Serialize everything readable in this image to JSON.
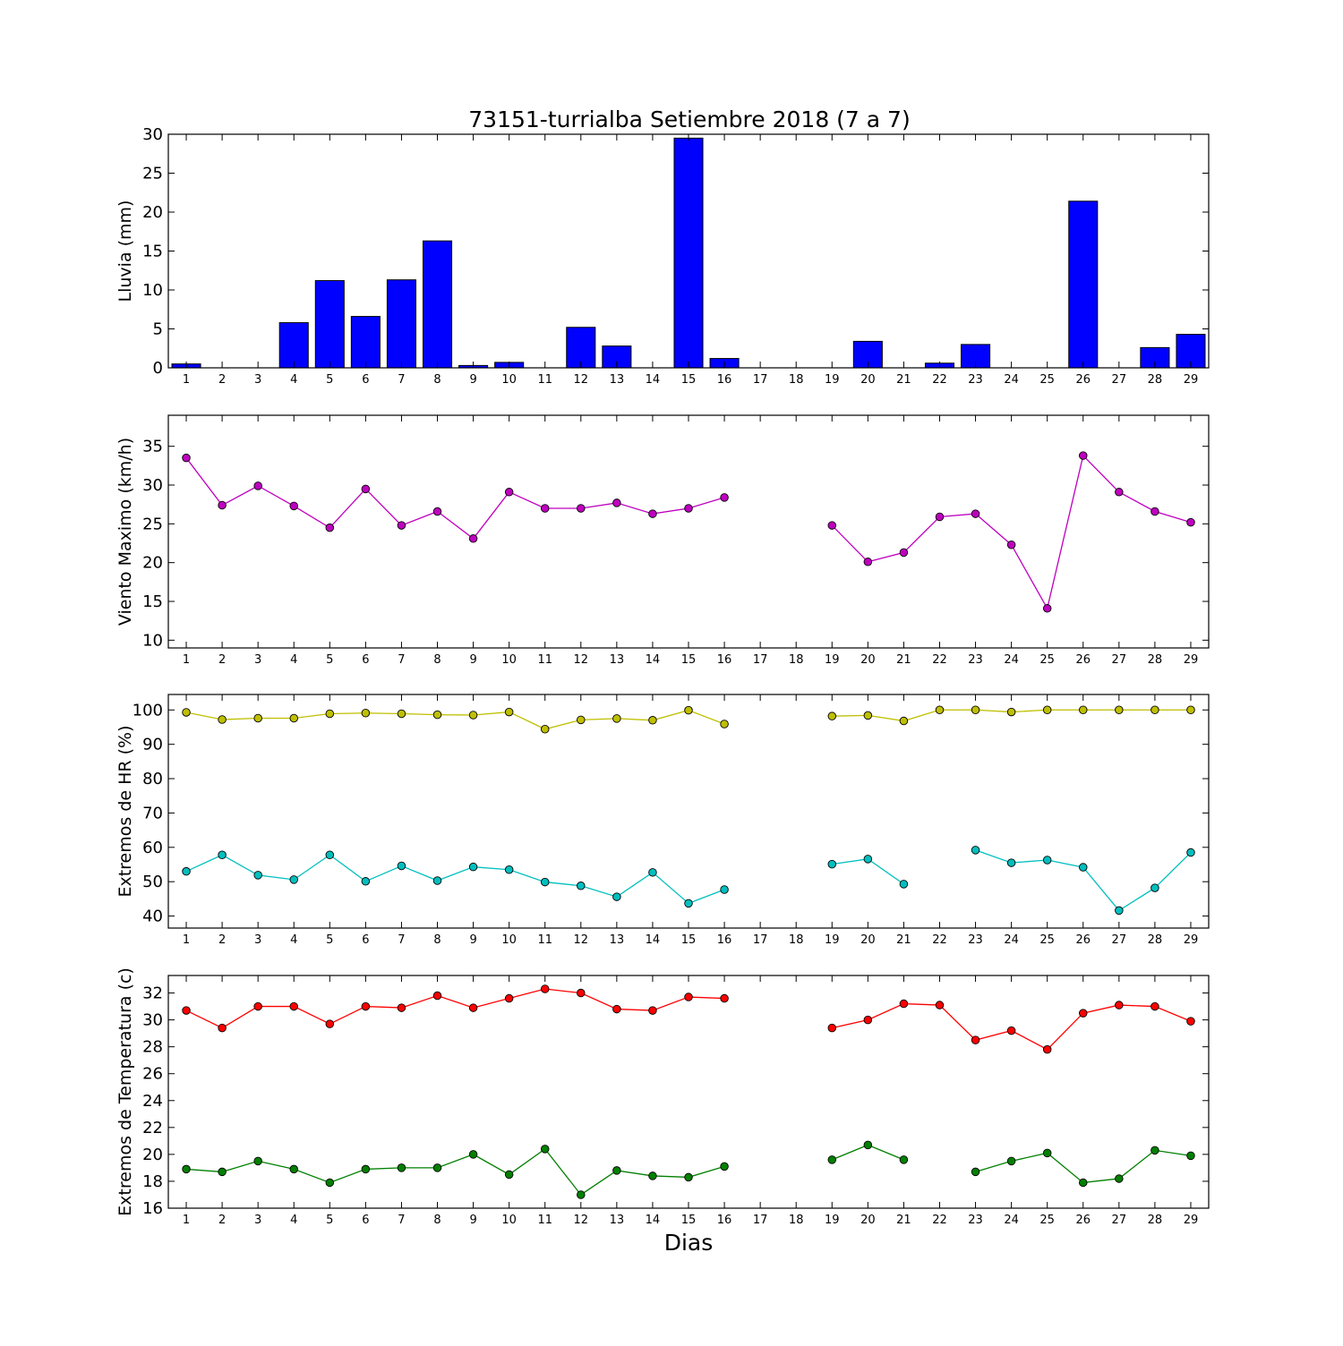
{
  "title": "73151-turrialba Setiembre 2018  (7 a 7)",
  "xlabel": "Dias",
  "chart_data": [
    {
      "type": "bar",
      "ylabel": "Lluvia (mm)",
      "ylim": [
        0,
        30
      ],
      "yticks": [
        0,
        5,
        10,
        15,
        20,
        25,
        30
      ],
      "categories": [
        "1",
        "2",
        "3",
        "4",
        "5",
        "6",
        "7",
        "8",
        "9",
        "10",
        "11",
        "12",
        "13",
        "14",
        "15",
        "16",
        "17",
        "18",
        "19",
        "20",
        "21",
        "22",
        "23",
        "24",
        "25",
        "26",
        "27",
        "28",
        "29"
      ],
      "series": [
        {
          "color": "#0000ff",
          "values": [
            0.5,
            0,
            0,
            5.8,
            11.2,
            6.6,
            11.3,
            16.3,
            0.3,
            0.7,
            0,
            5.2,
            2.8,
            0,
            29.5,
            1.2,
            0,
            0,
            0,
            3.4,
            0,
            0.6,
            3.0,
            0,
            0,
            21.4,
            0,
            2.6,
            4.3
          ]
        }
      ]
    },
    {
      "type": "line",
      "ylabel": "Viento Maximo (km/h)",
      "ylim": [
        9,
        39
      ],
      "yticks": [
        10,
        15,
        20,
        25,
        30,
        35
      ],
      "categories": [
        "1",
        "2",
        "3",
        "4",
        "5",
        "6",
        "7",
        "8",
        "9",
        "10",
        "11",
        "12",
        "13",
        "14",
        "15",
        "16",
        "17",
        "18",
        "19",
        "20",
        "21",
        "22",
        "23",
        "24",
        "25",
        "26",
        "27",
        "28",
        "29"
      ],
      "series": [
        {
          "color": "#bf00bf",
          "values": [
            33.5,
            27.4,
            29.9,
            27.3,
            24.5,
            29.5,
            24.8,
            26.6,
            23.1,
            29.1,
            27.0,
            27.0,
            27.7,
            26.3,
            27.0,
            28.4,
            null,
            null,
            24.8,
            20.1,
            21.3,
            25.9,
            26.3,
            22.3,
            14.1,
            33.8,
            29.1,
            26.6,
            25.2
          ]
        }
      ]
    },
    {
      "type": "line",
      "ylabel": "Extremos de HR (%)",
      "ylim": [
        36.5,
        104.5
      ],
      "yticks": [
        40,
        50,
        60,
        70,
        80,
        90,
        100
      ],
      "categories": [
        "1",
        "2",
        "3",
        "4",
        "5",
        "6",
        "7",
        "8",
        "9",
        "10",
        "11",
        "12",
        "13",
        "14",
        "15",
        "16",
        "17",
        "18",
        "19",
        "20",
        "21",
        "22",
        "23",
        "24",
        "25",
        "26",
        "27",
        "28",
        "29"
      ],
      "series": [
        {
          "color": "#bfbf00",
          "values": [
            99.3,
            97.2,
            97.6,
            97.6,
            98.9,
            99.1,
            98.9,
            98.6,
            98.5,
            99.4,
            94.4,
            97.1,
            97.5,
            97.0,
            99.9,
            95.9,
            null,
            null,
            98.2,
            98.4,
            96.8,
            100.0,
            100.0,
            99.4,
            100.0,
            100.0,
            100.0,
            100.0,
            100.0
          ]
        },
        {
          "color": "#00bfbf",
          "values": [
            53.0,
            57.8,
            51.9,
            50.6,
            57.8,
            50.1,
            54.6,
            50.3,
            54.3,
            53.5,
            49.9,
            48.8,
            45.6,
            52.7,
            43.7,
            47.7,
            null,
            null,
            55.1,
            56.6,
            49.3,
            null,
            59.2,
            55.5,
            56.3,
            54.2,
            41.6,
            48.2,
            58.5
          ]
        }
      ]
    },
    {
      "type": "line",
      "ylabel": "Extremos de Temperatura (c)",
      "ylim": [
        16,
        33.3
      ],
      "yticks": [
        16,
        18,
        20,
        22,
        24,
        26,
        28,
        30,
        32
      ],
      "categories": [
        "1",
        "2",
        "3",
        "4",
        "5",
        "6",
        "7",
        "8",
        "9",
        "10",
        "11",
        "12",
        "13",
        "14",
        "15",
        "16",
        "17",
        "18",
        "19",
        "20",
        "21",
        "22",
        "23",
        "24",
        "25",
        "26",
        "27",
        "28",
        "29"
      ],
      "series": [
        {
          "color": "#ff0000",
          "values": [
            30.7,
            29.4,
            31.0,
            31.0,
            29.7,
            31.0,
            30.9,
            31.8,
            30.9,
            31.6,
            32.3,
            32.0,
            30.8,
            30.7,
            31.7,
            31.6,
            null,
            null,
            29.4,
            30.0,
            31.2,
            31.1,
            28.5,
            29.2,
            27.8,
            30.5,
            31.1,
            31.0,
            29.9
          ]
        },
        {
          "color": "#008000",
          "values": [
            18.9,
            18.7,
            19.5,
            18.9,
            17.9,
            18.9,
            19.0,
            19.0,
            20.0,
            18.5,
            20.4,
            17.0,
            18.8,
            18.4,
            18.3,
            19.1,
            null,
            null,
            19.6,
            20.7,
            19.6,
            null,
            18.7,
            19.5,
            20.1,
            17.9,
            18.2,
            20.3,
            19.9
          ]
        }
      ]
    }
  ]
}
